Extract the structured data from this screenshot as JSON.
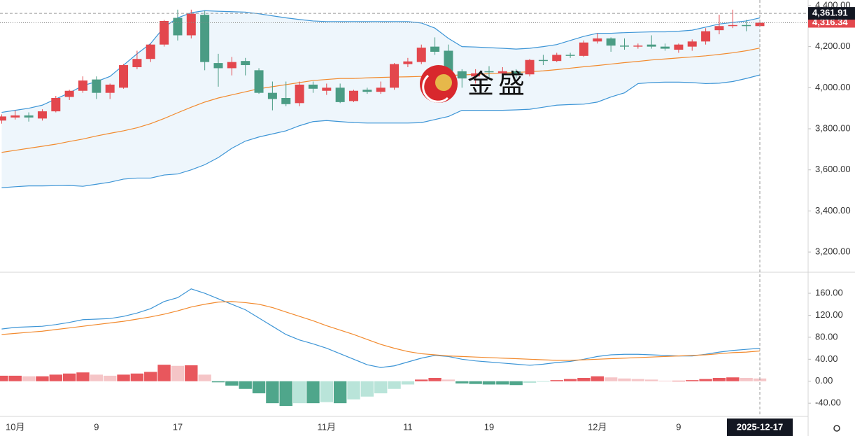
{
  "chart_data": [
    {
      "type": "candlestick",
      "categories": [
        null,
        "10月",
        null,
        null,
        null,
        null,
        null,
        "9",
        null,
        null,
        null,
        null,
        null,
        "17",
        null,
        null,
        null,
        null,
        null,
        null,
        null,
        null,
        null,
        null,
        "11月",
        null,
        null,
        null,
        null,
        null,
        "11",
        null,
        null,
        null,
        null,
        null,
        "19",
        null,
        null,
        null,
        null,
        null,
        null,
        null,
        "12月",
        null,
        null,
        null,
        null,
        null,
        "9",
        null,
        null,
        null,
        null,
        null,
        null
      ],
      "open": [
        3840,
        3855,
        3865,
        3850,
        3885,
        3955,
        3985,
        4040,
        3975,
        4000,
        4100,
        4140,
        4210,
        4340,
        4255,
        4355,
        4120,
        4095,
        4130,
        4085,
        3975,
        3950,
        3925,
        4015,
        3985,
        4000,
        3935,
        3990,
        3980,
        4000,
        4115,
        4125,
        4200,
        4180,
        4080,
        4055,
        4080,
        4070,
        4080,
        4065,
        4135,
        4130,
        4160,
        4155,
        4225,
        4240,
        4205,
        4200,
        4210,
        4200,
        4185,
        4200,
        4225,
        4280,
        4300,
        4305,
        4300
      ],
      "high": [
        3870,
        3890,
        3880,
        3895,
        3960,
        3990,
        4055,
        4055,
        4020,
        4115,
        4180,
        4215,
        4330,
        4380,
        4380,
        4375,
        4165,
        4150,
        4145,
        4095,
        4030,
        4030,
        4030,
        4030,
        4020,
        4020,
        3990,
        4000,
        4030,
        4120,
        4145,
        4210,
        4245,
        4210,
        4090,
        4090,
        4105,
        4100,
        4090,
        4140,
        4160,
        4170,
        4170,
        4230,
        4265,
        4245,
        4240,
        4215,
        4255,
        4215,
        4215,
        4235,
        4290,
        4355,
        4380,
        4330,
        4325
      ],
      "low": [
        3825,
        3845,
        3835,
        3840,
        3880,
        3940,
        3975,
        3945,
        3945,
        3995,
        4090,
        4125,
        4200,
        4230,
        4240,
        4085,
        4005,
        4060,
        4060,
        3970,
        3890,
        3910,
        3910,
        3975,
        3965,
        3925,
        3930,
        3970,
        3970,
        3990,
        4100,
        4115,
        4160,
        4040,
        4000,
        4020,
        4040,
        4050,
        4045,
        4055,
        4110,
        4125,
        4145,
        4150,
        4215,
        4175,
        4185,
        4190,
        4190,
        4180,
        4170,
        4180,
        4210,
        4260,
        4290,
        4275,
        4295
      ],
      "close": [
        3860,
        3865,
        3855,
        3885,
        3950,
        3985,
        4035,
        3975,
        4015,
        4110,
        4140,
        4210,
        4325,
        4255,
        4360,
        4125,
        4095,
        4125,
        4110,
        3975,
        3945,
        3920,
        4015,
        3995,
        4000,
        3930,
        3985,
        3980,
        4000,
        4115,
        4128,
        4195,
        4175,
        4080,
        4045,
        4070,
        4075,
        4080,
        4065,
        4135,
        4130,
        4160,
        4155,
        4220,
        4240,
        4205,
        4200,
        4205,
        4200,
        4190,
        4210,
        4225,
        4275,
        4300,
        4305,
        4300,
        4316.34
      ],
      "up_color": "#e3474d",
      "down_color": "#4a9c84",
      "bands": {
        "fill": "#eef6fc",
        "lines": [
          {
            "color": "#3d95d6",
            "values": [
              3880,
              3890,
              3900,
              3915,
              3945,
              3975,
              4010,
              4030,
              4055,
              4110,
              4165,
              4215,
              4295,
              4340,
              4365,
              4375,
              4372,
              4370,
              4368,
              4360,
              4350,
              4340,
              4332,
              4325,
              4322,
              4322,
              4322,
              4322,
              4322,
              4322,
              4322,
              4315,
              4290,
              4240,
              4200,
              4198,
              4195,
              4192,
              4188,
              4192,
              4200,
              4210,
              4230,
              4250,
              4265,
              4265,
              4268,
              4270,
              4272,
              4272,
              4275,
              4280,
              4295,
              4310,
              4318,
              4325,
              4340
            ]
          },
          {
            "color": "#f28a2e",
            "values": [
              3685,
              3695,
              3705,
              3715,
              3725,
              3738,
              3750,
              3765,
              3778,
              3790,
              3805,
              3825,
              3850,
              3878,
              3905,
              3930,
              3950,
              3965,
              3980,
              3995,
              4005,
              4015,
              4025,
              4035,
              4040,
              4045,
              4045,
              4048,
              4050,
              4052,
              4053,
              4055,
              4058,
              4060,
              4062,
              4065,
              4068,
              4072,
              4074,
              4078,
              4082,
              4088,
              4095,
              4102,
              4108,
              4115,
              4122,
              4128,
              4135,
              4140,
              4145,
              4150,
              4155,
              4162,
              4170,
              4180,
              4193
            ]
          },
          {
            "color": "#3d95d6",
            "values": [
              3513,
              3518,
              3522,
              3522,
              3523,
              3524,
              3520,
              3530,
              3540,
              3555,
              3560,
              3560,
              3575,
              3580,
              3600,
              3625,
              3660,
              3705,
              3740,
              3760,
              3775,
              3790,
              3815,
              3835,
              3840,
              3835,
              3830,
              3828,
              3828,
              3828,
              3828,
              3830,
              3845,
              3860,
              3890,
              3890,
              3890,
              3890,
              3892,
              3895,
              3905,
              3915,
              3918,
              3920,
              3930,
              3955,
              3975,
              4020,
              4025,
              4027,
              4027,
              4025,
              4020,
              4022,
              4030,
              4045,
              4062
            ]
          }
        ]
      },
      "ylim": [
        3105,
        4427
      ],
      "yticks": [
        {
          "value": 3200,
          "label": "3,200.00"
        },
        {
          "value": 3400,
          "label": "3,400.00"
        },
        {
          "value": 3600,
          "label": "3,600.00"
        },
        {
          "value": 3800,
          "label": "3,800.00"
        },
        {
          "value": 4000,
          "label": "4,000.00"
        },
        {
          "value": 4200,
          "label": "4,200.00"
        },
        {
          "value": 4400,
          "label": "4,400.00"
        }
      ],
      "last_price": {
        "value": 4316.34,
        "label": "4,316.34"
      },
      "crosshair": {
        "price": {
          "value": 4361.91,
          "label": "4,361.91"
        },
        "date_label": "2025-12-17"
      },
      "watermark": "金盛"
    },
    {
      "type": "macd",
      "lines": [
        {
          "color": "#3d95d6",
          "values": [
            95,
            98,
            99,
            100,
            103,
            107,
            112,
            113,
            114,
            118,
            124,
            132,
            145,
            152,
            168,
            160,
            150,
            140,
            130,
            115,
            100,
            85,
            75,
            68,
            60,
            50,
            40,
            30,
            25,
            28,
            35,
            42,
            47,
            45,
            40,
            37,
            35,
            33,
            31,
            29,
            31,
            34,
            36,
            40,
            45,
            48,
            49,
            49,
            48,
            47,
            46,
            46,
            49,
            53,
            56,
            58,
            60
          ]
        },
        {
          "color": "#f28a2e",
          "values": [
            85,
            87,
            89,
            91,
            94,
            97,
            100,
            103,
            106,
            109,
            113,
            117,
            122,
            128,
            135,
            140,
            144,
            145,
            143,
            140,
            134,
            126,
            118,
            110,
            101,
            93,
            85,
            76,
            67,
            60,
            54,
            50,
            48,
            46,
            45,
            44,
            43,
            42,
            41,
            40,
            39,
            38,
            38,
            39,
            40,
            41,
            42,
            43,
            44,
            45,
            46,
            47,
            48,
            50,
            52,
            53,
            55
          ]
        }
      ],
      "histogram": {
        "values": [
          10,
          10,
          9,
          9,
          12,
          14,
          16,
          12,
          10,
          12,
          14,
          17,
          30,
          28,
          29,
          12,
          -2,
          -8,
          -14,
          -22,
          -40,
          -45,
          -40,
          -40,
          -38,
          -40,
          -33,
          -28,
          -22,
          -14,
          -6,
          3,
          6,
          3,
          -4,
          -5,
          -6,
          -6,
          -7,
          -3,
          -1,
          2,
          4,
          6,
          9,
          7,
          5,
          4,
          3,
          1,
          1,
          2,
          4,
          6,
          7,
          6,
          5
        ],
        "colors": {
          "up_grow": "#e8575d",
          "up_fall": "#f5c5c7",
          "down_grow": "#4fa68b",
          "down_fall": "#b9e4d9"
        }
      },
      "ylim": [
        -64,
        197
      ],
      "yticks": [
        {
          "value": -40,
          "label": "-40.00"
        },
        {
          "value": 0,
          "label": "0.00"
        },
        {
          "value": 40,
          "label": "40.00"
        },
        {
          "value": 80,
          "label": "80.00"
        },
        {
          "value": 120,
          "label": "120.00"
        },
        {
          "value": 160,
          "label": "160.00"
        }
      ]
    }
  ]
}
